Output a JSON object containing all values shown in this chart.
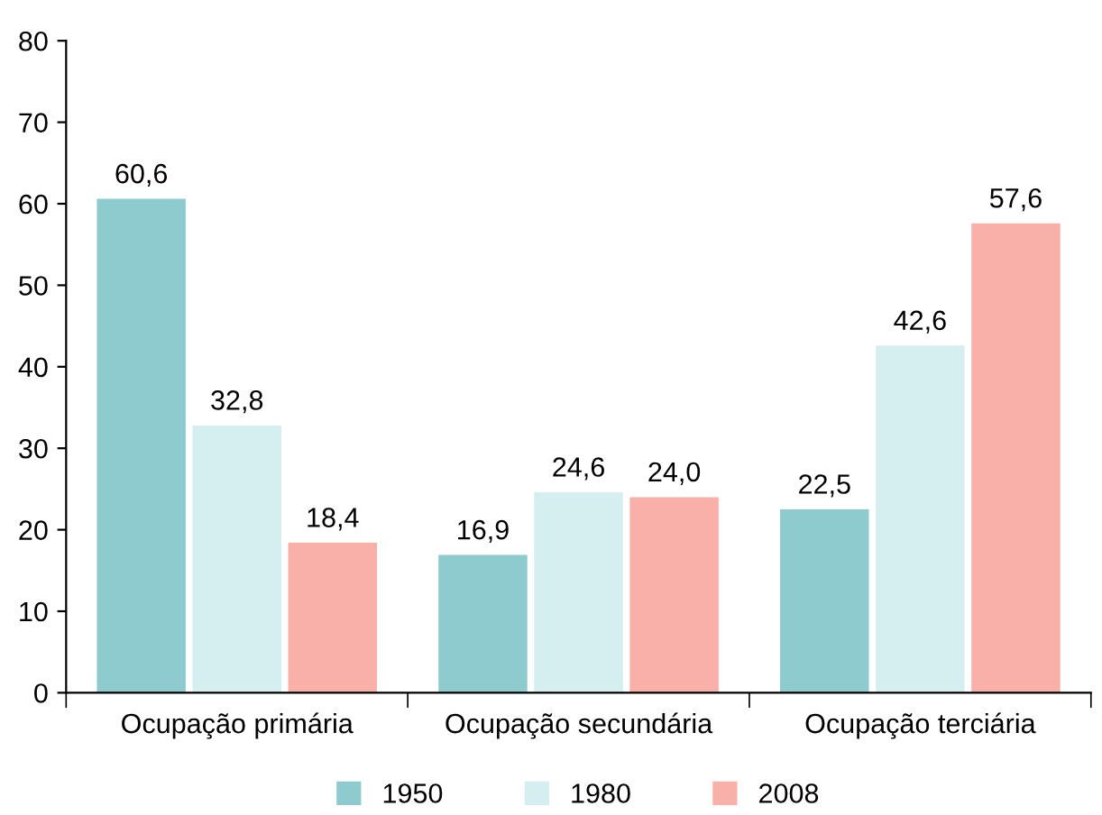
{
  "chart_data": {
    "type": "bar",
    "categories": [
      "Ocupação primária",
      "Ocupação secundária",
      "Ocupação terciária"
    ],
    "series": [
      {
        "name": "1950",
        "color": "#8ecbcf",
        "values": [
          60.6,
          16.9,
          22.5
        ],
        "value_labels": [
          "60,6",
          "16,9",
          "22,5"
        ]
      },
      {
        "name": "1980",
        "color": "#d5eef0",
        "values": [
          32.8,
          24.6,
          42.6
        ],
        "value_labels": [
          "32,8",
          "24,6",
          "42,6"
        ]
      },
      {
        "name": "2008",
        "color": "#f8b0a8",
        "values": [
          18.4,
          24.0,
          57.6
        ],
        "value_labels": [
          "18,4",
          "24,0",
          "57,6"
        ]
      }
    ],
    "ylim": [
      0,
      80
    ],
    "yticks": [
      0,
      10,
      20,
      30,
      40,
      50,
      60,
      70,
      80
    ],
    "grid": false,
    "legend": "bottom"
  }
}
